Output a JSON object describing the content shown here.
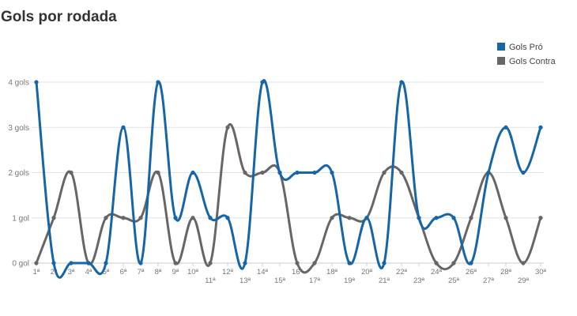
{
  "chart_data": {
    "type": "line",
    "title": "Gols por rodada",
    "categories": [
      "1ª",
      "2ª",
      "3ª",
      "4ª",
      "5ª",
      "6ª",
      "7ª",
      "8ª",
      "9ª",
      "10ª",
      "11ª",
      "12ª",
      "13ª",
      "14ª",
      "15ª",
      "16ª",
      "17ª",
      "18ª",
      "19ª",
      "20ª",
      "21ª",
      "22ª",
      "23ª",
      "24ª",
      "25ª",
      "26ª",
      "27ª",
      "28ª",
      "29ª",
      "30ª"
    ],
    "series": [
      {
        "name": "Gols Pró",
        "color": "#1565a8",
        "values": [
          4,
          0,
          0,
          0,
          0,
          3,
          0,
          4,
          1,
          2,
          1,
          1,
          0,
          4,
          2,
          2,
          2,
          2,
          0,
          1,
          0,
          4,
          1,
          1,
          1,
          0,
          2,
          3,
          2,
          3
        ]
      },
      {
        "name": "Gols Contra",
        "color": "#666666",
        "values": [
          0,
          1,
          2,
          0,
          1,
          1,
          1,
          2,
          0,
          1,
          0,
          3,
          2,
          2,
          2,
          0,
          0,
          1,
          1,
          1,
          2,
          2,
          1,
          0,
          0,
          1,
          2,
          1,
          0,
          1
        ]
      }
    ],
    "ylim": [
      0,
      4
    ],
    "yticks": [
      {
        "value": 0,
        "label": "0 gol"
      },
      {
        "value": 1,
        "label": "1 gol"
      },
      {
        "value": 2,
        "label": "2 gols"
      },
      {
        "value": 3,
        "label": "3 gols"
      },
      {
        "value": 4,
        "label": "4 gols"
      }
    ],
    "grid": true,
    "legend": "top-right"
  }
}
